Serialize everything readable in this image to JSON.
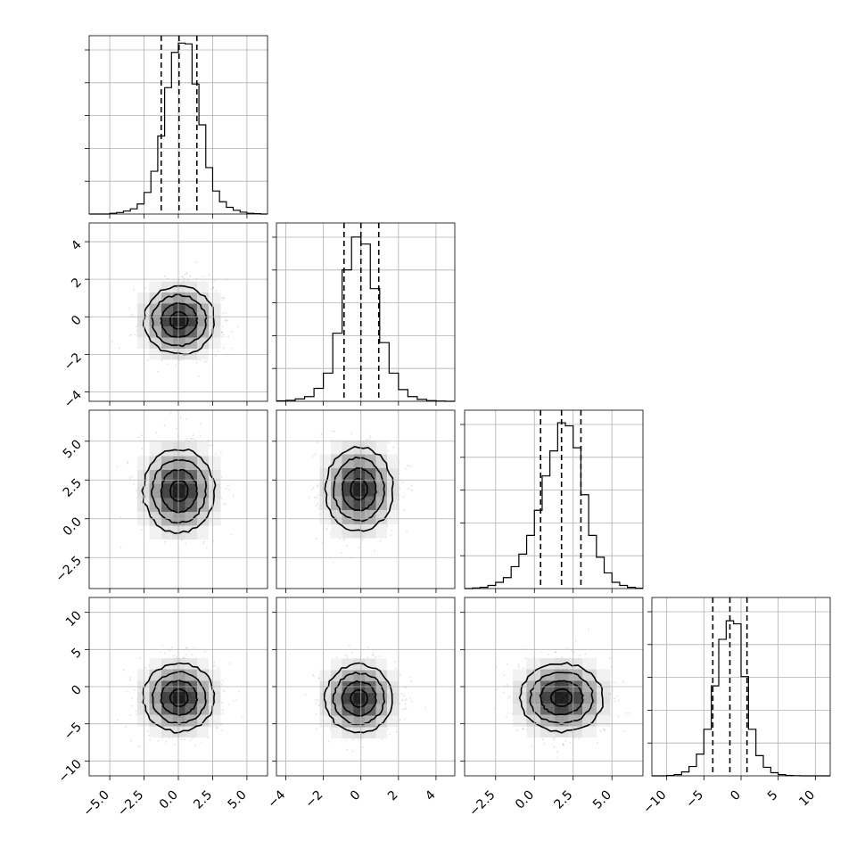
{
  "chart_data": {
    "type": "corner",
    "parameters": [
      {
        "index": 0,
        "xlim": [
          -6.5,
          6.5
        ],
        "ticks": [
          -5.0,
          -2.5,
          0.0,
          2.5,
          5.0
        ],
        "tick_labels": [
          "−5.0",
          "−2.5",
          "0.0",
          "2.5",
          "5.0"
        ],
        "mean": 0.05,
        "sigma": 1.3,
        "quantiles": [
          -1.25,
          0.05,
          1.35
        ]
      },
      {
        "index": 1,
        "xlim": [
          -4.5,
          5.0
        ],
        "ticks": [
          -4,
          -2,
          0,
          2,
          4
        ],
        "tick_labels": [
          "−4",
          "−2",
          "0",
          "2",
          "4"
        ],
        "mean": 0.0,
        "sigma": 0.9,
        "quantiles": [
          -0.9,
          0.0,
          0.95
        ]
      },
      {
        "index": 2,
        "xlim": [
          -4.5,
          7.0
        ],
        "ticks": [
          -2.5,
          0.0,
          2.5,
          5.0
        ],
        "tick_labels": [
          "−2.5",
          "0.0",
          "2.5",
          "5.0"
        ],
        "mean": 1.75,
        "sigma": 1.35,
        "quantiles": [
          0.4,
          1.75,
          3.0
        ]
      },
      {
        "index": 3,
        "xlim": [
          -12.0,
          12.0
        ],
        "ticks": [
          -10,
          -5,
          0,
          5,
          10
        ],
        "tick_labels": [
          "−10",
          "−5",
          "0",
          "5",
          "10"
        ],
        "mean": -1.5,
        "sigma": 2.3,
        "quantiles": [
          -3.8,
          -1.5,
          0.8
        ]
      }
    ],
    "histograms": [
      {
        "param": 0,
        "bins": [
          -6.5,
          -6.0,
          -5.5,
          -5.0,
          -4.5,
          -4.0,
          -3.5,
          -3.0,
          -2.5,
          -2.0,
          -1.5,
          -1.0,
          -0.5,
          0.0,
          0.5,
          1.0,
          1.5,
          2.0,
          2.5,
          3.0,
          3.5,
          4.0,
          4.5,
          5.0,
          5.5,
          6.0,
          6.5
        ],
        "counts": [
          0,
          0,
          0,
          2,
          4,
          8,
          14,
          27,
          58,
          115,
          210,
          340,
          435,
          460,
          458,
          350,
          240,
          125,
          62,
          33,
          18,
          10,
          5,
          2,
          1,
          0
        ],
        "ymax": 480
      },
      {
        "param": 1,
        "bins": [
          -4.5,
          -4.0,
          -3.5,
          -3.0,
          -2.5,
          -2.0,
          -1.5,
          -1.0,
          -0.5,
          0.0,
          0.5,
          1.0,
          1.5,
          2.0,
          2.5,
          3.0,
          3.5,
          4.0,
          4.5,
          5.0
        ],
        "counts": [
          2,
          4,
          10,
          20,
          55,
          120,
          290,
          560,
          700,
          670,
          480,
          250,
          120,
          50,
          20,
          8,
          3,
          1,
          0
        ],
        "ymax": 760
      },
      {
        "param": 2,
        "bins": [
          -4.5,
          -4.0,
          -3.5,
          -3.0,
          -2.5,
          -2.0,
          -1.5,
          -1.0,
          -0.5,
          0.0,
          0.5,
          1.0,
          1.5,
          2.0,
          2.5,
          3.0,
          3.5,
          4.0,
          4.5,
          5.0,
          5.5,
          6.0,
          6.5,
          7.0
        ],
        "counts": [
          0,
          2,
          4,
          10,
          20,
          35,
          70,
          110,
          170,
          250,
          360,
          440,
          530,
          520,
          450,
          300,
          170,
          100,
          50,
          20,
          10,
          4,
          1
        ],
        "ymax": 570
      },
      {
        "param": 3,
        "bins": [
          -12.0,
          -11.0,
          -10.0,
          -9.0,
          -8.0,
          -7.0,
          -6.0,
          -5.0,
          -4.0,
          -3.0,
          -2.0,
          -1.0,
          0.0,
          1.0,
          2.0,
          3.0,
          4.0,
          5.0,
          6.0,
          7.0,
          8.0,
          9.0,
          10.0,
          11.0,
          12.0
        ],
        "counts": [
          0,
          0,
          2,
          8,
          25,
          60,
          140,
          300,
          580,
          880,
          1000,
          980,
          640,
          300,
          130,
          55,
          20,
          8,
          2,
          1,
          0,
          0,
          0,
          0
        ],
        "ymax": 1150
      }
    ],
    "pair_plots": [
      {
        "row": 1,
        "col": 0,
        "x_mean": 0.05,
        "y_mean": -0.2,
        "x_sigma": 1.3,
        "y_sigma": 0.9
      },
      {
        "row": 2,
        "col": 0,
        "x_mean": 0.05,
        "y_mean": 1.8,
        "x_sigma": 1.3,
        "y_sigma": 1.35
      },
      {
        "row": 2,
        "col": 1,
        "x_mean": -0.1,
        "y_mean": 1.9,
        "x_sigma": 0.9,
        "y_sigma": 1.35
      },
      {
        "row": 3,
        "col": 0,
        "x_mean": 0.05,
        "y_mean": -1.5,
        "x_sigma": 1.3,
        "y_sigma": 2.3
      },
      {
        "row": 3,
        "col": 1,
        "x_mean": -0.1,
        "y_mean": -1.6,
        "x_sigma": 0.9,
        "y_sigma": 2.3
      },
      {
        "row": 3,
        "col": 2,
        "x_mean": 1.75,
        "y_mean": -1.5,
        "x_sigma": 1.35,
        "y_sigma": 2.3
      }
    ],
    "grid": true
  }
}
